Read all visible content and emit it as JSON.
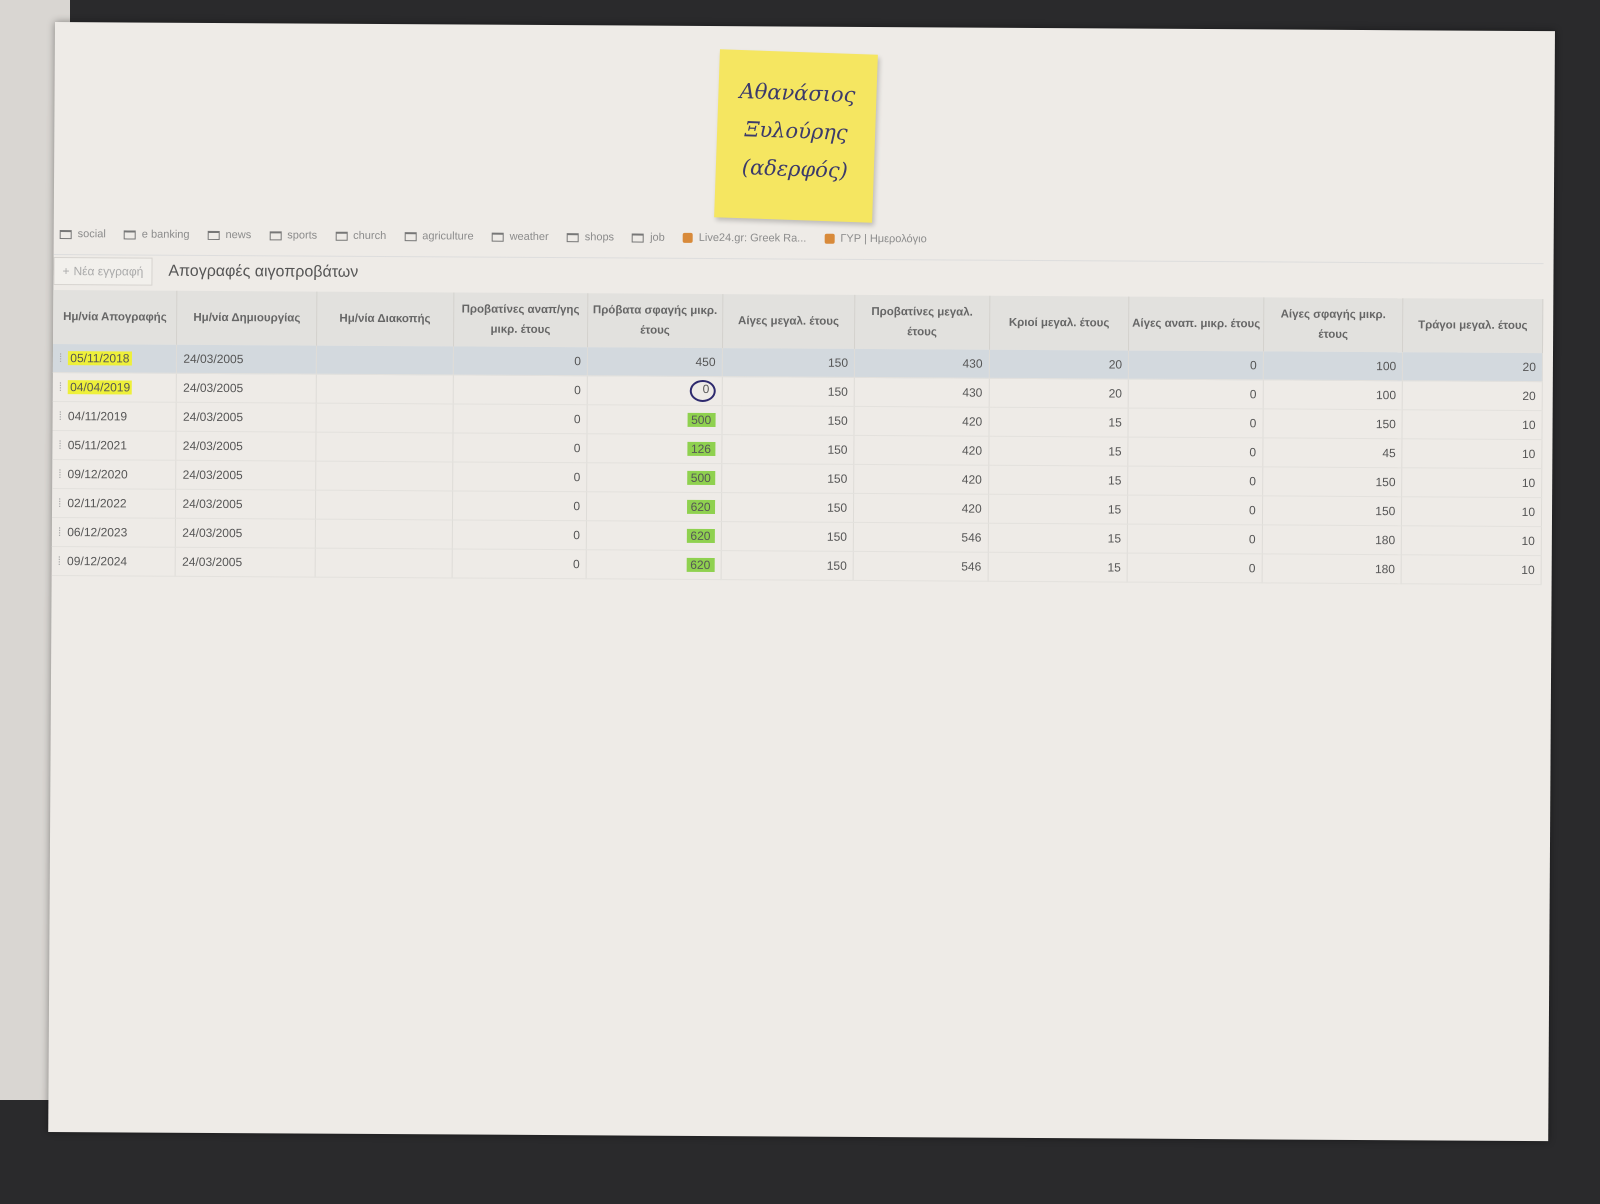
{
  "sticky_note": {
    "lines": [
      "Αθανάσιος",
      "Ξυλούρης",
      "(αδερφός)"
    ],
    "color": "#f5e661"
  },
  "bookmarks": [
    {
      "label": "social",
      "icon": "folder-icon"
    },
    {
      "label": "e banking",
      "icon": "folder-icon"
    },
    {
      "label": "news",
      "icon": "folder-icon"
    },
    {
      "label": "sports",
      "icon": "folder-icon"
    },
    {
      "label": "church",
      "icon": "folder-icon"
    },
    {
      "label": "agriculture",
      "icon": "folder-icon"
    },
    {
      "label": "weather",
      "icon": "folder-icon"
    },
    {
      "label": "shops",
      "icon": "folder-icon"
    },
    {
      "label": "job",
      "icon": "folder-icon"
    },
    {
      "label": "Live24.gr: Greek Ra...",
      "icon": "favicon"
    },
    {
      "label": "ΓΥΡ | Ημερολόγιο",
      "icon": "favicon"
    }
  ],
  "toolbar": {
    "new_label": "Νέα εγγραφή",
    "title": "Απογραφές αιγοπροβάτων"
  },
  "table": {
    "columns": [
      "Ημ/νία Απογραφής",
      "Ημ/νία Δημιουργίας",
      "Ημ/νία Διακοπής",
      "Προβατίνες αναπ/γης μικρ. έτους",
      "Πρόβατα σφαγής μικρ. έτους",
      "Αίγες μεγαλ. έτους",
      "Προβατίνες μεγαλ. έτους",
      "Κριοί μεγαλ. έτους",
      "Αίγες αναπ. μικρ. έτους",
      "Αίγες σφαγής μικρ. έτους",
      "Τράγοι μεγαλ. έτους"
    ],
    "rows": [
      [
        "05/11/2018",
        "24/03/2005",
        "",
        "0",
        "450",
        "150",
        "430",
        "20",
        "0",
        "100",
        "20"
      ],
      [
        "04/04/2019",
        "24/03/2005",
        "",
        "0",
        "0",
        "150",
        "430",
        "20",
        "0",
        "100",
        "20"
      ],
      [
        "04/11/2019",
        "24/03/2005",
        "",
        "0",
        "500",
        "150",
        "420",
        "15",
        "0",
        "150",
        "10"
      ],
      [
        "05/11/2021",
        "24/03/2005",
        "",
        "0",
        "126",
        "150",
        "420",
        "15",
        "0",
        "45",
        "10"
      ],
      [
        "09/12/2020",
        "24/03/2005",
        "",
        "0",
        "500",
        "150",
        "420",
        "15",
        "0",
        "150",
        "10"
      ],
      [
        "02/11/2022",
        "24/03/2005",
        "",
        "0",
        "620",
        "150",
        "420",
        "15",
        "0",
        "150",
        "10"
      ],
      [
        "06/12/2023",
        "24/03/2005",
        "",
        "0",
        "620",
        "150",
        "546",
        "15",
        "0",
        "180",
        "10"
      ],
      [
        "09/12/2024",
        "24/03/2005",
        "",
        "0",
        "620",
        "150",
        "546",
        "15",
        "0",
        "180",
        "10"
      ]
    ],
    "selected_row": 0,
    "annotations": {
      "yellow_highlight_rows": [
        0,
        1
      ],
      "circled_row": 1,
      "green_highlight_rows": [
        2,
        3,
        4,
        5,
        6,
        7
      ]
    }
  },
  "colors": {
    "yellow_highlight": "#eef03a",
    "green_highlight": "#8fd14f",
    "selected_row": "#d3d9de"
  }
}
